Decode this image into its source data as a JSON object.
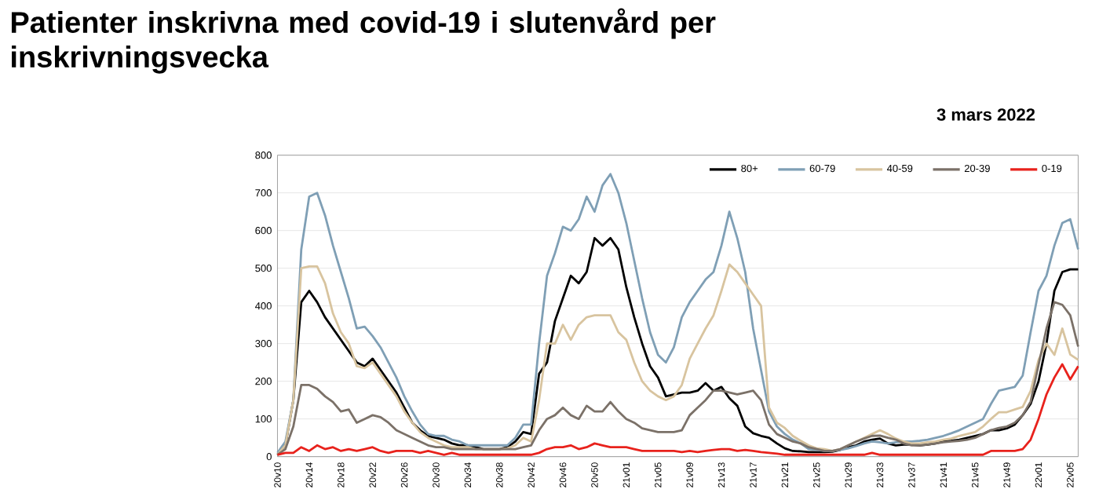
{
  "chart_data": {
    "type": "line",
    "title": "Patienter inskrivna med covid-19 i slutenvård per inskrivningsvecka",
    "annotations": [
      "3 mars 2022"
    ],
    "categories": [
      "20v10",
      null,
      null,
      null,
      "20v14",
      null,
      null,
      null,
      "20v18",
      null,
      null,
      null,
      "20v22",
      null,
      null,
      null,
      "20v26",
      null,
      null,
      null,
      "20v30",
      null,
      null,
      null,
      "20v34",
      null,
      null,
      null,
      "20v38",
      null,
      null,
      null,
      "20v42",
      null,
      null,
      null,
      "20v46",
      null,
      null,
      null,
      "20v50",
      null,
      null,
      null,
      "21v01",
      null,
      null,
      null,
      "21v05",
      null,
      null,
      null,
      "21v09",
      null,
      null,
      null,
      "21v13",
      null,
      null,
      null,
      "21v17",
      null,
      null,
      null,
      "21v21",
      null,
      null,
      null,
      "21v25",
      null,
      null,
      null,
      "21v29",
      null,
      null,
      null,
      "21v33",
      null,
      null,
      null,
      "21v37",
      null,
      null,
      null,
      "21v41",
      null,
      null,
      null,
      "21v45",
      null,
      null,
      null,
      "21v49",
      null,
      null,
      null,
      "22v01",
      null,
      null,
      null,
      "22v05",
      null
    ],
    "series": [
      {
        "name": "80+",
        "color": "#000000",
        "values": [
          5,
          30,
          150,
          410,
          440,
          410,
          370,
          340,
          310,
          280,
          250,
          240,
          260,
          230,
          200,
          170,
          130,
          90,
          70,
          55,
          50,
          45,
          35,
          30,
          30,
          25,
          20,
          20,
          20,
          25,
          40,
          65,
          60,
          220,
          250,
          360,
          420,
          480,
          460,
          490,
          580,
          560,
          580,
          550,
          450,
          370,
          300,
          240,
          210,
          160,
          165,
          170,
          170,
          175,
          195,
          175,
          185,
          155,
          135,
          80,
          62,
          55,
          50,
          35,
          22,
          15,
          14,
          12,
          12,
          12,
          13,
          18,
          25,
          30,
          40,
          45,
          48,
          35,
          30,
          32,
          32,
          30,
          32,
          35,
          40,
          42,
          45,
          50,
          55,
          60,
          70,
          70,
          75,
          85,
          110,
          140,
          200,
          300,
          440,
          490,
          497,
          497
        ]
      },
      {
        "name": "60-79",
        "color": "#7f9fb5",
        "values": [
          10,
          40,
          150,
          550,
          690,
          700,
          640,
          560,
          490,
          420,
          340,
          345,
          320,
          290,
          250,
          210,
          160,
          120,
          85,
          60,
          55,
          55,
          45,
          40,
          30,
          30,
          30,
          30,
          30,
          30,
          50,
          85,
          85,
          300,
          480,
          540,
          610,
          600,
          630,
          690,
          650,
          720,
          750,
          700,
          620,
          520,
          420,
          330,
          270,
          250,
          290,
          370,
          410,
          440,
          470,
          490,
          560,
          650,
          580,
          490,
          340,
          230,
          120,
          80,
          60,
          45,
          35,
          20,
          18,
          15,
          15,
          18,
          22,
          28,
          35,
          40,
          38,
          35,
          38,
          40,
          40,
          42,
          45,
          50,
          55,
          62,
          70,
          80,
          90,
          100,
          140,
          175,
          180,
          185,
          215,
          330,
          440,
          480,
          560,
          620,
          630,
          550
        ]
      },
      {
        "name": "40-59",
        "color": "#d8c49f",
        "values": [
          5,
          30,
          150,
          500,
          505,
          505,
          460,
          380,
          330,
          300,
          240,
          235,
          250,
          220,
          190,
          160,
          120,
          90,
          65,
          50,
          40,
          30,
          25,
          25,
          25,
          20,
          20,
          20,
          20,
          22,
          30,
          50,
          40,
          150,
          300,
          300,
          350,
          310,
          350,
          370,
          375,
          375,
          375,
          330,
          310,
          250,
          200,
          175,
          160,
          150,
          160,
          190,
          260,
          300,
          340,
          375,
          440,
          510,
          490,
          460,
          430,
          400,
          130,
          90,
          76,
          55,
          42,
          30,
          22,
          20,
          15,
          20,
          30,
          40,
          50,
          60,
          70,
          60,
          48,
          40,
          35,
          35,
          38,
          40,
          45,
          48,
          55,
          60,
          65,
          80,
          100,
          118,
          118,
          125,
          132,
          174,
          257,
          300,
          270,
          340,
          271,
          257
        ]
      },
      {
        "name": "20-39",
        "color": "#7b7168",
        "values": [
          5,
          20,
          80,
          190,
          190,
          180,
          160,
          145,
          120,
          125,
          90,
          100,
          110,
          105,
          90,
          70,
          60,
          50,
          40,
          30,
          25,
          25,
          20,
          20,
          20,
          20,
          20,
          20,
          20,
          20,
          20,
          25,
          30,
          70,
          100,
          110,
          130,
          110,
          100,
          135,
          120,
          120,
          145,
          120,
          100,
          90,
          75,
          70,
          65,
          65,
          65,
          70,
          110,
          130,
          150,
          175,
          175,
          170,
          165,
          170,
          175,
          150,
          85,
          60,
          50,
          40,
          35,
          25,
          20,
          15,
          15,
          20,
          30,
          40,
          48,
          55,
          56,
          50,
          45,
          35,
          30,
          30,
          32,
          35,
          38,
          40,
          42,
          45,
          50,
          60,
          70,
          76,
          80,
          90,
          110,
          146,
          243,
          340,
          410,
          403,
          375,
          292
        ]
      },
      {
        "name": "0-19",
        "color": "#e8221c",
        "values": [
          5,
          10,
          10,
          25,
          15,
          30,
          20,
          25,
          15,
          20,
          15,
          20,
          25,
          15,
          10,
          15,
          15,
          15,
          10,
          15,
          10,
          5,
          10,
          5,
          5,
          5,
          5,
          5,
          5,
          5,
          5,
          5,
          5,
          10,
          20,
          25,
          25,
          30,
          20,
          25,
          35,
          30,
          25,
          25,
          25,
          20,
          15,
          15,
          15,
          15,
          15,
          12,
          15,
          12,
          15,
          18,
          20,
          20,
          15,
          18,
          15,
          12,
          10,
          8,
          5,
          5,
          5,
          5,
          5,
          5,
          5,
          5,
          5,
          5,
          5,
          10,
          5,
          5,
          5,
          5,
          5,
          5,
          5,
          5,
          5,
          5,
          5,
          5,
          5,
          5,
          15,
          15,
          15,
          15,
          20,
          45,
          100,
          165,
          210,
          245,
          205,
          240
        ]
      }
    ],
    "ylim": [
      0,
      800
    ],
    "yticks": [
      0,
      100,
      200,
      300,
      400,
      500,
      600,
      700,
      800
    ],
    "grid": "y",
    "legend": "top right",
    "marker": "none",
    "line_style": "solid"
  }
}
